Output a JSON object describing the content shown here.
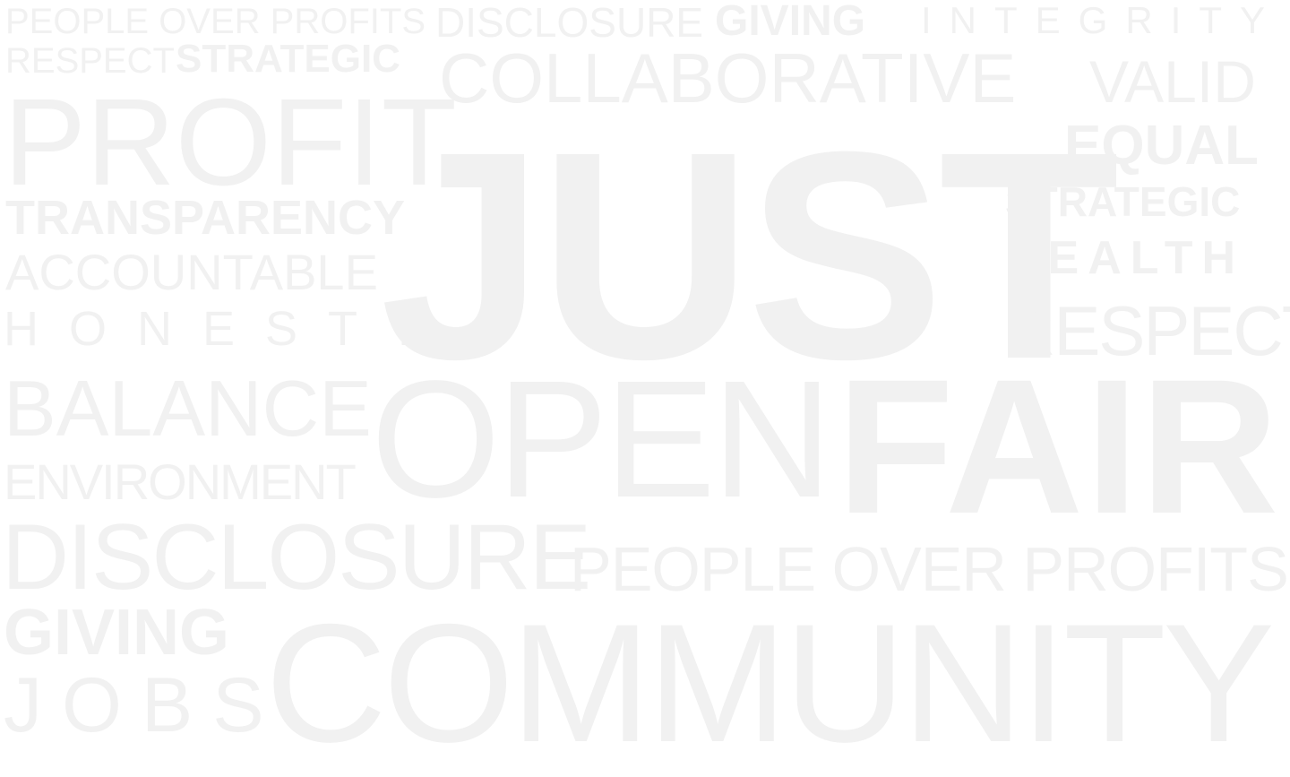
{
  "words": [
    {
      "id": "w1",
      "text": "PEOPLE OVER PROFITS"
    },
    {
      "id": "w2",
      "text": "DISCLOSURE"
    },
    {
      "id": "w3",
      "text": "GIVING"
    },
    {
      "id": "w4",
      "text": "INTEGRITY"
    },
    {
      "id": "w5",
      "text": "RESPECT"
    },
    {
      "id": "w6",
      "text": "STRATEGIC"
    },
    {
      "id": "w7",
      "text": "COLLABORATIVE"
    },
    {
      "id": "w8",
      "text": "VALID"
    },
    {
      "id": "w9",
      "text": "PROFIT"
    },
    {
      "id": "w10",
      "text": "JUST"
    },
    {
      "id": "w11",
      "text": "EQUAL"
    },
    {
      "id": "w12",
      "text": "TRANSPARENCY"
    },
    {
      "id": "w13",
      "text": "STRATEGIC"
    },
    {
      "id": "w14",
      "text": "ACCOUNTABLE"
    },
    {
      "id": "w15",
      "text": "HEALTH"
    },
    {
      "id": "w16",
      "text": "RESPECT"
    },
    {
      "id": "w17",
      "text": "HONESTY"
    },
    {
      "id": "w18",
      "text": "BALANCE"
    },
    {
      "id": "w19",
      "text": "OPEN"
    },
    {
      "id": "w20",
      "text": "FAIR"
    },
    {
      "id": "w21",
      "text": "ENVIRONMENT"
    },
    {
      "id": "w22",
      "text": "DISCLOSURE"
    },
    {
      "id": "w23",
      "text": "PEOPLE OVER PROFITS"
    },
    {
      "id": "w24",
      "text": "GIVING"
    },
    {
      "id": "w25",
      "text": "JOBS"
    },
    {
      "id": "w26",
      "text": "COMMUNITY"
    }
  ],
  "colors": {
    "background": "#ffffff",
    "text": "#f1f1f1"
  }
}
